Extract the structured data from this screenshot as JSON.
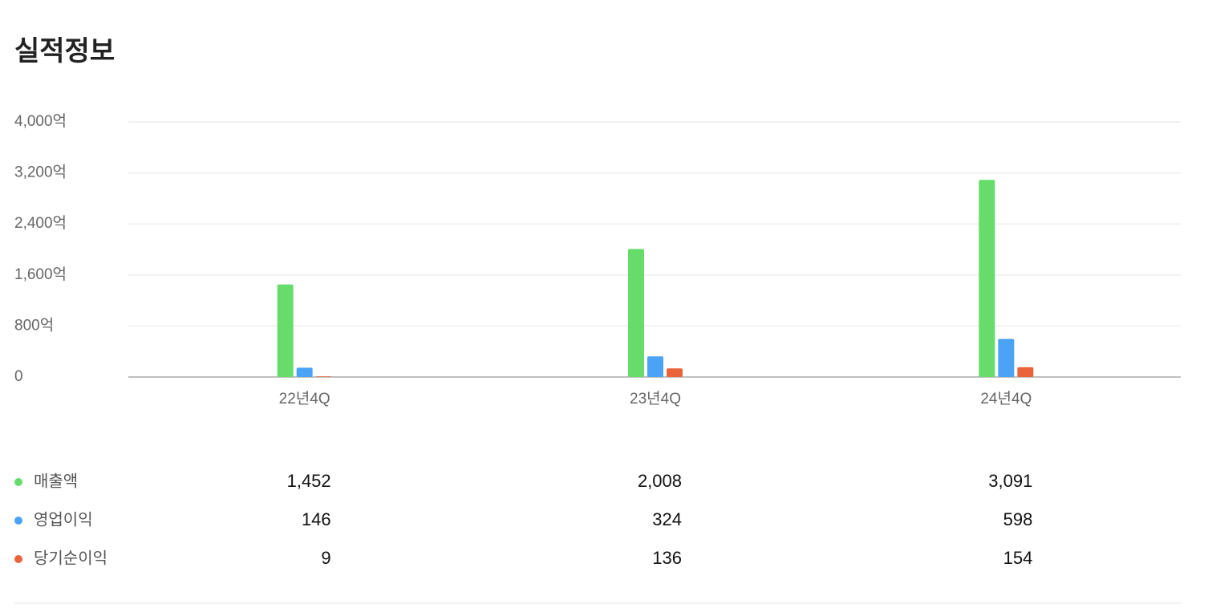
{
  "chart_data": {
    "type": "bar",
    "title": "실적정보",
    "categories": [
      "22년4Q",
      "23년4Q",
      "24년4Q"
    ],
    "series": [
      {
        "name": "매출액",
        "color": "#66dd6a",
        "values": [
          1452,
          2008,
          3091
        ],
        "value_labels": [
          "1,452",
          "2,008",
          "3,091"
        ]
      },
      {
        "name": "영업이익",
        "color": "#4aa3f5",
        "values": [
          146,
          324,
          598
        ]
      },
      {
        "name": "당기순이익",
        "color": "#e9643a",
        "values": [
          9,
          136,
          154
        ]
      }
    ],
    "ylim": [
      0,
      4000
    ],
    "yticks": [
      0,
      {
        "value": 800,
        "label": "800억"
      },
      {
        "value": 1600,
        "label": "1,600억"
      },
      {
        "value": 2400,
        "label": "2,400억"
      },
      {
        "value": 3200,
        "label": "3,200억"
      },
      {
        "value": 4000,
        "label": "4,000억"
      }
    ],
    "grid": true
  }
}
